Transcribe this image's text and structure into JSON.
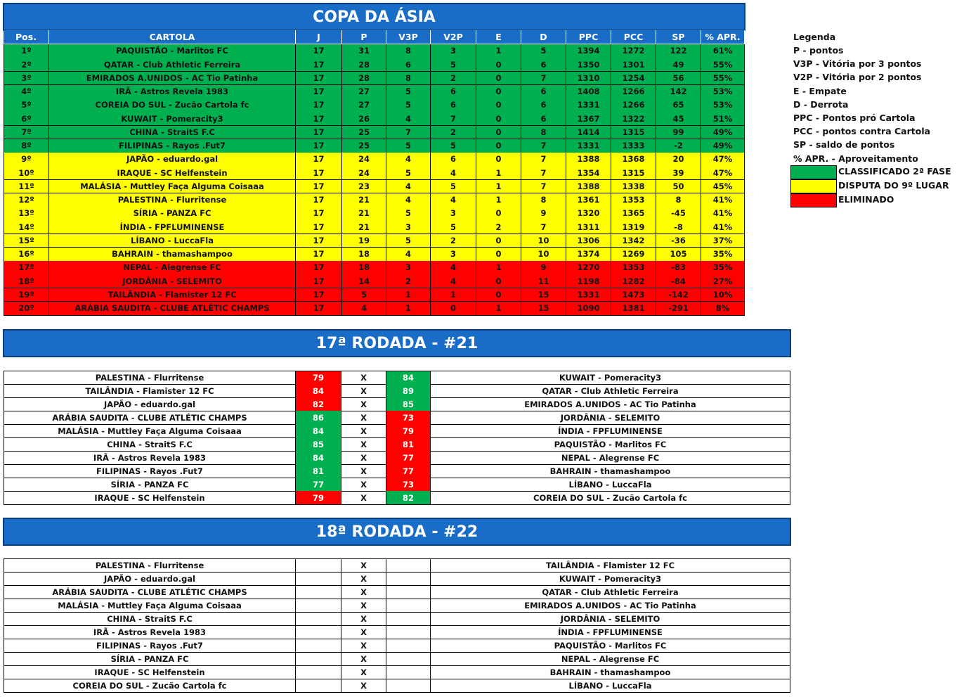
{
  "standings": {
    "title": "COPA DA ÁSIA",
    "headers": [
      "Pos.",
      "CARTOLA",
      "J",
      "P",
      "V3P",
      "V2P",
      "E",
      "D",
      "PPC",
      "PCC",
      "SP",
      "% APR."
    ],
    "rows": [
      {
        "zone": 0,
        "cells": [
          "1º",
          "PAQUISTÃO - Marlitos FC",
          "17",
          "31",
          "8",
          "3",
          "1",
          "5",
          "1394",
          "1272",
          "122",
          "61%"
        ]
      },
      {
        "zone": 0,
        "cells": [
          "2º",
          "QATAR - Club Athletic Ferreira",
          "17",
          "28",
          "6",
          "5",
          "0",
          "6",
          "1350",
          "1301",
          "49",
          "55%"
        ]
      },
      {
        "zone": 0,
        "cells": [
          "3º",
          "EMIRADOS A.UNIDOS - AC Tio Patinha",
          "17",
          "28",
          "8",
          "2",
          "0",
          "7",
          "1310",
          "1254",
          "56",
          "55%"
        ]
      },
      {
        "zone": 0,
        "cells": [
          "4º",
          "IRÃ - Astros Revela 1983",
          "17",
          "27",
          "5",
          "6",
          "0",
          "6",
          "1408",
          "1266",
          "142",
          "53%"
        ]
      },
      {
        "zone": 0,
        "cells": [
          "5º",
          "COREIA DO SUL - Zucão Cartola fc",
          "17",
          "27",
          "5",
          "6",
          "0",
          "6",
          "1331",
          "1266",
          "65",
          "53%"
        ]
      },
      {
        "zone": 0,
        "cells": [
          "6º",
          "KUWAIT - Pomeracity3",
          "17",
          "26",
          "4",
          "7",
          "0",
          "6",
          "1367",
          "1322",
          "45",
          "51%"
        ]
      },
      {
        "zone": 0,
        "cells": [
          "7º",
          "CHINA - StraitS F.C",
          "17",
          "25",
          "7",
          "2",
          "0",
          "8",
          "1414",
          "1315",
          "99",
          "49%"
        ]
      },
      {
        "zone": 0,
        "cells": [
          "8º",
          "FILIPINAS - Rayos .Fut7",
          "17",
          "25",
          "5",
          "5",
          "0",
          "7",
          "1331",
          "1333",
          "-2",
          "49%"
        ]
      },
      {
        "zone": 1,
        "cells": [
          "9º",
          "JAPÃO - eduardo.gal",
          "17",
          "24",
          "4",
          "6",
          "0",
          "7",
          "1388",
          "1368",
          "20",
          "47%"
        ]
      },
      {
        "zone": 1,
        "cells": [
          "10º",
          "IRAQUE - SC Helfenstein",
          "17",
          "24",
          "5",
          "4",
          "1",
          "7",
          "1354",
          "1315",
          "39",
          "47%"
        ]
      },
      {
        "zone": 1,
        "cells": [
          "11º",
          "MALÁSIA - Muttley Faça Alguma Coisaaa",
          "17",
          "23",
          "4",
          "5",
          "1",
          "7",
          "1388",
          "1338",
          "50",
          "45%"
        ]
      },
      {
        "zone": 1,
        "cells": [
          "12º",
          "PALESTINA - Flurritense",
          "17",
          "21",
          "4",
          "4",
          "1",
          "8",
          "1361",
          "1353",
          "8",
          "41%"
        ]
      },
      {
        "zone": 1,
        "cells": [
          "13º",
          "SÍRIA - PANZA FC",
          "17",
          "21",
          "5",
          "3",
          "0",
          "9",
          "1320",
          "1365",
          "-45",
          "41%"
        ]
      },
      {
        "zone": 1,
        "cells": [
          "14º",
          "ÍNDIA - FPFLUMINENSE",
          "17",
          "21",
          "3",
          "5",
          "2",
          "7",
          "1311",
          "1319",
          "-8",
          "41%"
        ]
      },
      {
        "zone": 1,
        "cells": [
          "15º",
          "LÍBANO - LuccaFla",
          "17",
          "19",
          "5",
          "2",
          "0",
          "10",
          "1306",
          "1342",
          "-36",
          "37%"
        ]
      },
      {
        "zone": 1,
        "cells": [
          "16º",
          "BAHRAIN - thamashampoo",
          "17",
          "18",
          "4",
          "3",
          "0",
          "10",
          "1374",
          "1269",
          "105",
          "35%"
        ]
      },
      {
        "zone": 2,
        "cells": [
          "17º",
          "NEPAL - Alegrense FC",
          "17",
          "18",
          "3",
          "4",
          "1",
          "9",
          "1270",
          "1353",
          "-83",
          "35%"
        ]
      },
      {
        "zone": 2,
        "cells": [
          "18º",
          "JORDÂNIA - SELEMITO",
          "17",
          "14",
          "2",
          "4",
          "0",
          "11",
          "1198",
          "1282",
          "-84",
          "27%"
        ]
      },
      {
        "zone": 2,
        "cells": [
          "19º",
          "TAILÂNDIA - Flamister 12 FC",
          "17",
          "5",
          "1",
          "1",
          "0",
          "15",
          "1331",
          "1473",
          "-142",
          "10%"
        ]
      },
      {
        "zone": 2,
        "cells": [
          "20º",
          "ARÁBIA SAUDITA - CLUBE ATLÉTIC CHAMPS",
          "17",
          "4",
          "1",
          "0",
          "1",
          "15",
          "1090",
          "1381",
          "-291",
          "8%"
        ]
      }
    ]
  },
  "legend": {
    "title": "Legenda",
    "items": [
      "P - pontos",
      "V3P - Vitória por 3 pontos",
      "V2P - Vitória por 2 pontos",
      "E - Empate",
      "D - Derrota",
      "PPC - Pontos pró Cartola",
      "PCC - pontos contra Cartola",
      "SP - saldo de pontos",
      "% APR. - Aproveitamento"
    ],
    "zones": [
      {
        "label": "CLASSIFICADO 2ª FASE",
        "color": "#00b050"
      },
      {
        "label": "DISPUTA DO 9º LUGAR",
        "color": "#ffff00"
      },
      {
        "label": "ELIMINADO",
        "color": "#ff0000"
      }
    ]
  },
  "rounds": [
    {
      "title": "17ª RODADA - #21",
      "separator": "X",
      "matches": [
        {
          "home": "PALESTINA - Flurritense",
          "home_score": 79,
          "away_score": 84,
          "away": "KUWAIT - Pomeracity3"
        },
        {
          "home": "TAILÂNDIA - Flamister 12 FC",
          "home_score": 84,
          "away_score": 89,
          "away": "QATAR - Club Athletic Ferreira"
        },
        {
          "home": "JAPÃO - eduardo.gal",
          "home_score": 82,
          "away_score": 85,
          "away": "EMIRADOS A.UNIDOS - AC Tio Patinha"
        },
        {
          "home": "ARÁBIA SAUDITA - CLUBE ATLÉTIC CHAMPS",
          "home_score": 86,
          "away_score": 73,
          "away": "JORDÂNIA - SELEMITO"
        },
        {
          "home": "MALÁSIA - Muttley Faça Alguma Coisaaa",
          "home_score": 84,
          "away_score": 79,
          "away": "ÍNDIA - FPFLUMINENSE"
        },
        {
          "home": "CHINA - StraitS F.C",
          "home_score": 85,
          "away_score": 81,
          "away": "PAQUISTÃO - Marlitos FC"
        },
        {
          "home": "IRÃ - Astros Revela 1983",
          "home_score": 84,
          "away_score": 77,
          "away": "NEPAL - Alegrense FC"
        },
        {
          "home": "FILIPINAS - Rayos .Fut7",
          "home_score": 81,
          "away_score": 77,
          "away": "BAHRAIN - thamashampoo"
        },
        {
          "home": "SÍRIA - PANZA FC",
          "home_score": 77,
          "away_score": 73,
          "away": "LÍBANO - LuccaFla"
        },
        {
          "home": "IRAQUE - SC Helfenstein",
          "home_score": 79,
          "away_score": 82,
          "away": "COREIA DO SUL - Zucão Cartola fc"
        }
      ]
    },
    {
      "title": "18ª RODADA - #22",
      "separator": "X",
      "matches": [
        {
          "home": "PALESTINA - Flurritense",
          "away": "TAILÂNDIA - Flamister 12 FC"
        },
        {
          "home": "JAPÃO - eduardo.gal",
          "away": "KUWAIT - Pomeracity3"
        },
        {
          "home": "ARÁBIA SAUDITA - CLUBE ATLÉTIC CHAMPS",
          "away": "QATAR - Club Athletic Ferreira"
        },
        {
          "home": "MALÁSIA - Muttley Faça Alguma Coisaaa",
          "away": "EMIRADOS A.UNIDOS - AC Tio Patinha"
        },
        {
          "home": "CHINA - StraitS F.C",
          "away": "JORDÂNIA - SELEMITO"
        },
        {
          "home": "IRÃ - Astros Revela 1983",
          "away": "ÍNDIA - FPFLUMINENSE"
        },
        {
          "home": "FILIPINAS - Rayos .Fut7",
          "away": "PAQUISTÃO - Marlitos FC"
        },
        {
          "home": "SÍRIA - PANZA FC",
          "away": "NEPAL - Alegrense FC"
        },
        {
          "home": "IRAQUE - SC Helfenstein",
          "away": "BAHRAIN - thamashampoo"
        },
        {
          "home": "COREIA DO SUL - Zucão Cartola fc",
          "away": "LÍBANO - LuccaFla"
        }
      ]
    }
  ]
}
